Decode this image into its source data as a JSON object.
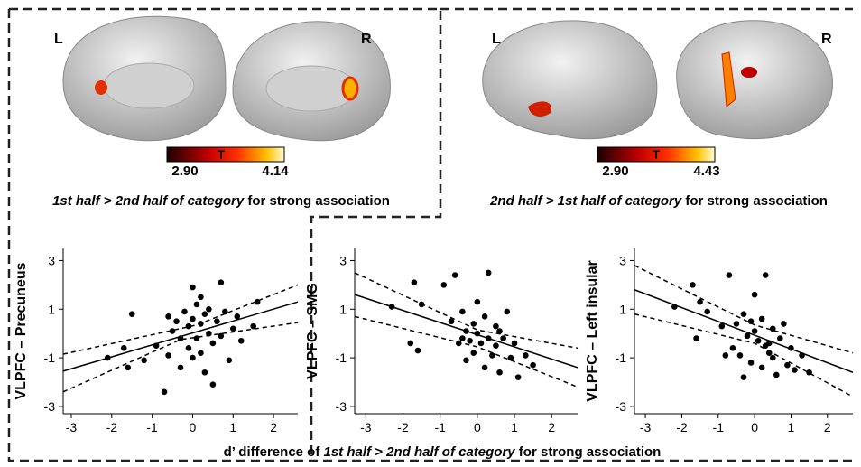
{
  "panels": [
    {
      "left": "L",
      "right": "R",
      "scale_min": "2.90",
      "scale_label": "T",
      "scale_max": "4.14",
      "caption": [
        "1st half > 2nd half of category",
        " for strong association"
      ]
    },
    {
      "left": "L",
      "right": "R",
      "scale_min": "2.90",
      "scale_label": "T",
      "scale_max": "4.43",
      "caption": [
        "2nd half > 1st half of category",
        " for strong association"
      ]
    }
  ],
  "xlabel": [
    "d’ difference of ",
    "1st half > 2nd half of category",
    " for strong association"
  ],
  "chart_data": [
    {
      "type": "scatter",
      "ylabel": "VLPFC – Precuneus",
      "color": "#000",
      "xlim": [
        -3.2,
        2.6
      ],
      "ylim": [
        -3.3,
        3.5
      ],
      "xticks": [
        -3,
        -2,
        -1,
        0,
        1,
        2
      ],
      "yticks": [
        -3,
        -1,
        1,
        3
      ],
      "x": [
        -2.1,
        -1.7,
        -1.6,
        -1.5,
        -1.2,
        -0.9,
        -0.7,
        -0.6,
        -0.5,
        -0.4,
        -0.3,
        -0.3,
        -0.2,
        -0.1,
        -0.1,
        0,
        0,
        0,
        0.1,
        0.1,
        0.2,
        0.2,
        0.3,
        0.3,
        0.4,
        0.4,
        0.5,
        0.5,
        0.6,
        0.7,
        0.7,
        0.8,
        0.9,
        1.0,
        1.1,
        1.2,
        1.5,
        1.6,
        -0.6,
        0.2
      ],
      "values": [
        -1.0,
        -0.6,
        -1.4,
        0.8,
        -1.1,
        -0.5,
        -2.4,
        -0.9,
        0.1,
        0.5,
        -1.4,
        -0.2,
        0.9,
        -0.6,
        0.3,
        1.9,
        -1.0,
        0.6,
        -0.2,
        1.2,
        0.4,
        -0.8,
        -1.6,
        0.8,
        0.0,
        1.0,
        -2.1,
        -0.4,
        0.5,
        2.1,
        -0.1,
        0.9,
        -1.1,
        0.2,
        0.7,
        -0.3,
        0.3,
        1.3,
        0.7,
        1.5
      ],
      "fit": {
        "x": [
          -3.2,
          2.6
        ],
        "y": [
          -1.55,
          1.3
        ]
      },
      "band_upper": {
        "x": [
          -3.2,
          0.1,
          2.6
        ],
        "y": [
          -0.85,
          0.35,
          2.0
        ]
      },
      "band_lower": {
        "x": [
          -3.2,
          -0.3,
          2.6
        ],
        "y": [
          -2.4,
          -0.25,
          0.45
        ]
      }
    },
    {
      "type": "scatter",
      "ylabel": "VLPFC – SMG",
      "color": "#000",
      "xlim": [
        -3.3,
        2.7
      ],
      "ylim": [
        -3.3,
        3.5
      ],
      "xticks": [
        -3,
        -2,
        -1,
        0,
        1,
        2
      ],
      "yticks": [
        -3,
        -1,
        1,
        3
      ],
      "x": [
        -2.3,
        -1.7,
        -1.8,
        -1.6,
        -1.5,
        -0.9,
        -0.7,
        -0.6,
        -0.5,
        -0.4,
        -0.3,
        -0.3,
        -0.2,
        -0.1,
        -0.1,
        0,
        0,
        0.1,
        0.2,
        0.2,
        0.3,
        0.3,
        0.4,
        0.5,
        0.5,
        0.6,
        0.7,
        0.8,
        0.9,
        1.0,
        1.1,
        1.3,
        1.5,
        0.6,
        -0.4
      ],
      "values": [
        1.1,
        2.1,
        -0.4,
        -0.7,
        1.2,
        2.0,
        0.5,
        2.4,
        -0.4,
        0.9,
        0.1,
        -1.1,
        -0.3,
        0.4,
        -0.8,
        0.0,
        1.3,
        -0.4,
        0.7,
        -1.4,
        2.5,
        -0.2,
        -0.9,
        0.3,
        -0.5,
        -1.6,
        -0.2,
        0.9,
        -1.0,
        -0.4,
        -1.8,
        -0.9,
        -1.3,
        0.1,
        -0.2
      ],
      "fit": {
        "x": [
          -3.3,
          2.7
        ],
        "y": [
          1.6,
          -1.4
        ]
      },
      "band_upper": {
        "x": [
          -3.3,
          0,
          2.7
        ],
        "y": [
          2.5,
          0.15,
          -0.6
        ]
      },
      "band_lower": {
        "x": [
          -3.3,
          0,
          2.7
        ],
        "y": [
          0.7,
          -0.55,
          -2.2
        ]
      }
    },
    {
      "type": "scatter",
      "ylabel": "VLPFC – Left insular",
      "color": "#000",
      "xlim": [
        -3.3,
        2.7
      ],
      "ylim": [
        -3.3,
        3.5
      ],
      "xticks": [
        -3,
        -2,
        -1,
        0,
        1,
        2
      ],
      "yticks": [
        -3,
        -1,
        1,
        3
      ],
      "x": [
        -2.2,
        -1.7,
        -1.6,
        -1.5,
        -1.3,
        -0.9,
        -0.7,
        -0.6,
        -0.5,
        -0.4,
        -0.3,
        -0.3,
        -0.2,
        -0.1,
        -0.1,
        0,
        0,
        0.1,
        0.2,
        0.2,
        0.3,
        0.3,
        0.4,
        0.5,
        0.5,
        0.6,
        0.7,
        0.8,
        0.9,
        1.0,
        1.1,
        1.3,
        1.5,
        0.4,
        -0.8
      ],
      "values": [
        1.1,
        2.0,
        -0.2,
        1.3,
        0.9,
        0.3,
        2.4,
        -0.6,
        0.4,
        -0.9,
        0.8,
        -1.8,
        -0.1,
        0.5,
        -1.2,
        0.1,
        1.6,
        -0.3,
        0.6,
        -1.4,
        2.4,
        -0.5,
        -0.8,
        0.2,
        -1.0,
        -1.7,
        -0.2,
        0.4,
        -1.3,
        -0.6,
        -1.5,
        -0.9,
        -1.6,
        -0.4,
        -0.9
      ],
      "fit": {
        "x": [
          -3.3,
          2.7
        ],
        "y": [
          1.8,
          -1.6
        ]
      },
      "band_upper": {
        "x": [
          -3.3,
          0,
          2.7
        ],
        "y": [
          2.8,
          0.35,
          -0.8
        ]
      },
      "band_lower": {
        "x": [
          -3.3,
          0,
          2.7
        ],
        "y": [
          0.8,
          -0.4,
          -2.6
        ]
      }
    }
  ]
}
